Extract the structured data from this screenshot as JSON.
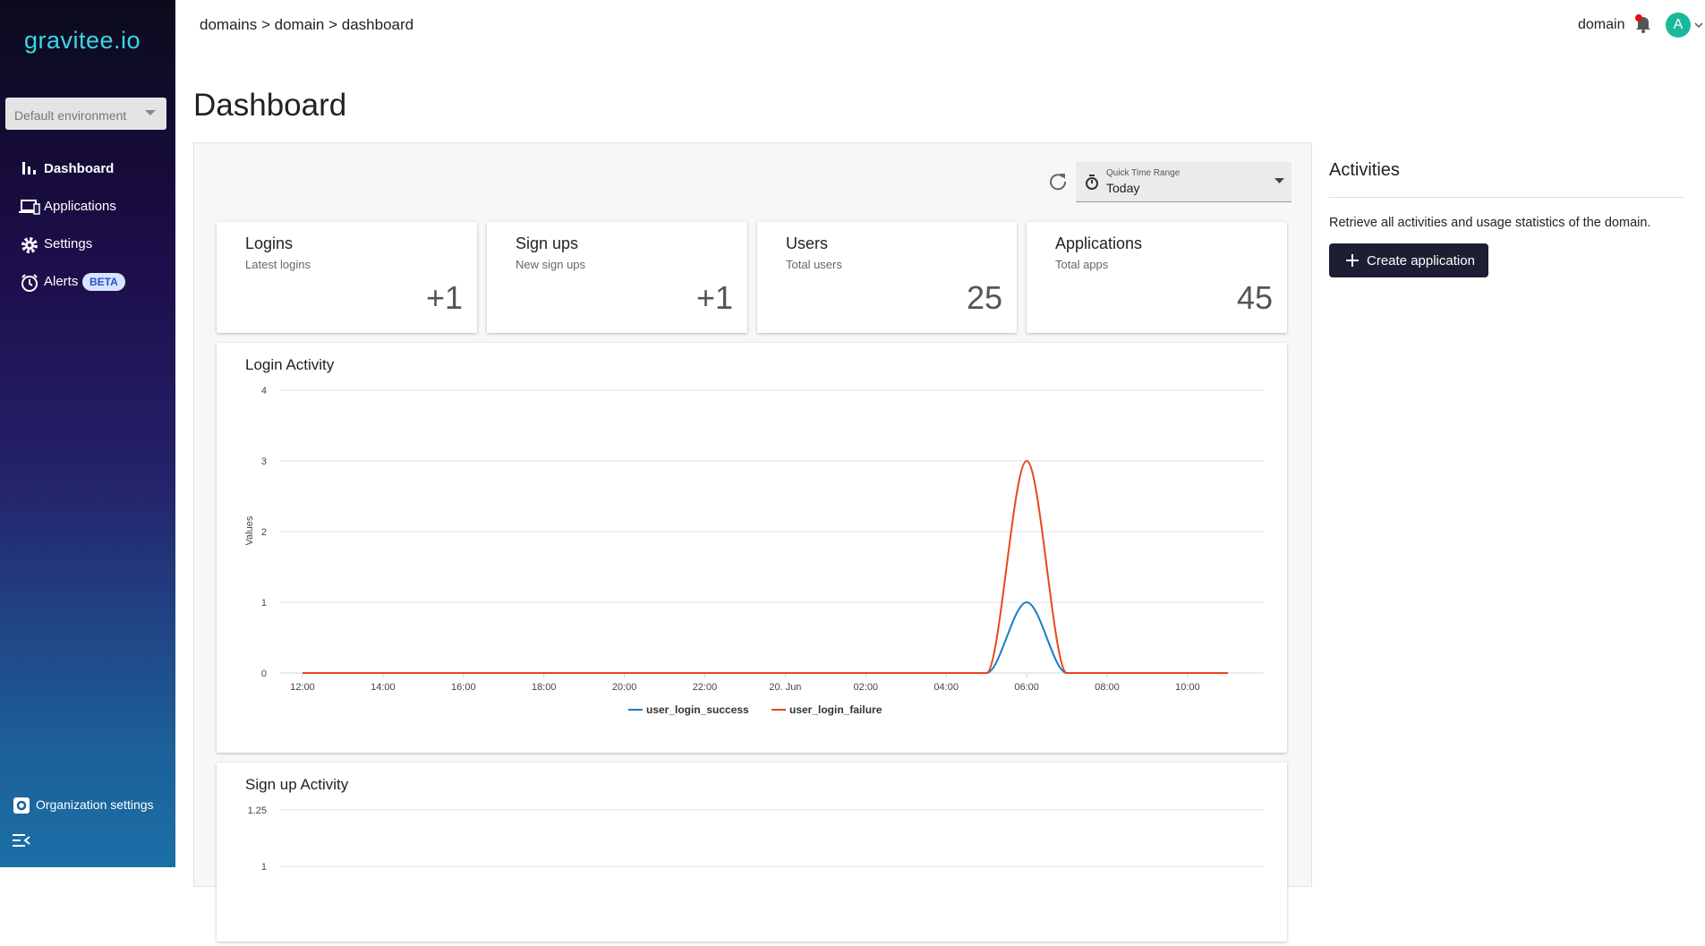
{
  "sidebar": {
    "logo": "gravitee.io",
    "environment": "Default environment",
    "nav": [
      "Dashboard",
      "Applications",
      "Settings",
      "Alerts"
    ],
    "badge": "BETA",
    "footer": "Organization settings"
  },
  "header": {
    "breadcrumb": "domains > domain > dashboard",
    "domain": "domain",
    "avatar": "A"
  },
  "page_title": "Dashboard",
  "time_range": {
    "label": "Quick Time Range",
    "value": "Today"
  },
  "cards": [
    {
      "title": "Logins",
      "subtitle": "Latest logins",
      "value": "+1"
    },
    {
      "title": "Sign ups",
      "subtitle": "New sign ups",
      "value": "+1"
    },
    {
      "title": "Users",
      "subtitle": "Total users",
      "value": 25
    },
    {
      "title": "Applications",
      "subtitle": "Total apps",
      "value": 45
    }
  ],
  "activities": {
    "title": "Activities",
    "text": "Retrieve all activities and usage statistics of the domain.",
    "button": "Create application"
  },
  "chart_data": [
    {
      "type": "line",
      "title": "Login Activity",
      "y_label": "Values",
      "categories": [
        "12:00",
        null,
        "14:00",
        null,
        "16:00",
        null,
        "18:00",
        null,
        "20:00",
        null,
        "22:00",
        null,
        "20. Jun",
        null,
        "02:00",
        null,
        "04:00",
        null,
        "06:00",
        null,
        "08:00",
        null,
        "10:00",
        null
      ],
      "series": [
        {
          "name": "user_login_success",
          "color": "#1a7cc1",
          "values": [
            0,
            0,
            0,
            0,
            0,
            0,
            0,
            0,
            0,
            0,
            0,
            0,
            0,
            0,
            0,
            0,
            0,
            0,
            1,
            0,
            0,
            0,
            0,
            0
          ]
        },
        {
          "name": "user_login_failure",
          "color": "#e8461e",
          "values": [
            0,
            0,
            0,
            0,
            0,
            0,
            0,
            0,
            0,
            0,
            0,
            0,
            0,
            0,
            0,
            0,
            0,
            0,
            3,
            0,
            0,
            0,
            0,
            0
          ]
        }
      ],
      "ylim": [
        0,
        4
      ],
      "yticks": [
        0,
        1,
        2,
        3,
        4
      ],
      "grid": true
    },
    {
      "type": "line",
      "title": "Sign up Activity",
      "ylim": [
        0,
        1.25
      ],
      "yticks": [
        1,
        1.25
      ],
      "grid": true
    }
  ]
}
